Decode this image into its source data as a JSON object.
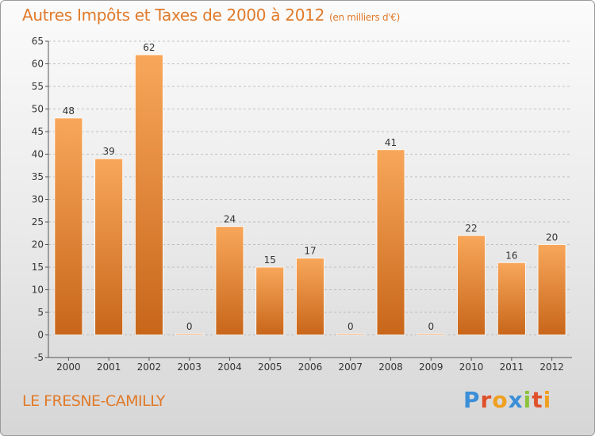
{
  "chart_data": {
    "type": "bar",
    "title": "Autres Impôts et Taxes de 2000 à 2012",
    "subtitle": "(en milliers d'€)",
    "categories": [
      "2000",
      "2001",
      "2002",
      "2003",
      "2004",
      "2005",
      "2006",
      "2007",
      "2008",
      "2009",
      "2010",
      "2011",
      "2012"
    ],
    "values": [
      48,
      39,
      62,
      0,
      24,
      15,
      17,
      0,
      41,
      0,
      22,
      16,
      20
    ],
    "ylim": [
      -5,
      65
    ],
    "yticks": [
      -5,
      0,
      5,
      10,
      15,
      20,
      25,
      30,
      35,
      40,
      45,
      50,
      55,
      60,
      65
    ],
    "grid": true,
    "bar_color_top": "#f8a75a",
    "bar_color_bottom": "#c8661a"
  },
  "place_name": "LE FRESNE-CAMILLY",
  "logo": {
    "text": "Proxiti",
    "letter_colors": [
      "#3a8fd8",
      "#e0502a",
      "#f0a020",
      "#3a8fd8",
      "#8cc43c",
      "#e0502a",
      "#f0a020"
    ]
  },
  "colors": {
    "accent": "#e07a2a",
    "grid": "#b0b0b0"
  }
}
